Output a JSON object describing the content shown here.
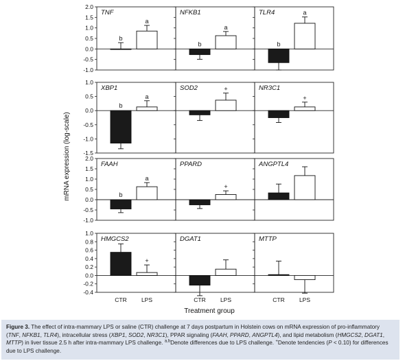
{
  "figure": {
    "ylabel": "mRNA expression (log-scale)",
    "xlabel": "Treatment group",
    "categories": [
      "CTR",
      "LPS"
    ]
  },
  "caption": {
    "label": "Figure 3.",
    "text": "The effect of intra-mammary LPS or saline (CTR) challenge at 7 days postpartum in Holstein cows on mRNA expression of pro-inflammatory (TNF, NFKB1, TLR4), intracellular stress (XBP1, SOD2, NR3C1), PPAR signaling (FAAH, PPARD, ANGPTL4), and lipid metabolism (HMGCS2, DGAT1, MTTP) in liver tissue 2.5 h after intra-mammary LPS challenge. a,bDenote differences due to LPS challenge. +Denote tendencies (P < 0.10) for differences due to LPS challenge."
  },
  "colors": {
    "ctr": "#1a1a1a",
    "lps": "#ffffff",
    "caption_bg": "#dde3ee"
  },
  "chart_data": [
    {
      "type": "bar",
      "title": "TNF",
      "ylim": [
        -1.0,
        2.0
      ],
      "yticks": [
        -1.0,
        -0.5,
        0.0,
        0.5,
        1.0,
        1.5,
        2.0
      ],
      "categories": [
        "CTR",
        "LPS"
      ],
      "values": [
        0.0,
        0.85
      ],
      "errors": [
        0.3,
        0.27
      ],
      "labels": [
        "b",
        "a"
      ]
    },
    {
      "type": "bar",
      "title": "NFKB1",
      "ylim": [
        -1.0,
        2.0
      ],
      "yticks": [
        -1.0,
        -0.5,
        0.0,
        0.5,
        1.0,
        1.5,
        2.0
      ],
      "categories": [
        "CTR",
        "LPS"
      ],
      "values": [
        -0.27,
        0.63
      ],
      "errors": [
        0.22,
        0.2
      ],
      "labels": [
        "b",
        "a"
      ]
    },
    {
      "type": "bar",
      "title": "TLR4",
      "ylim": [
        -1.0,
        2.0
      ],
      "yticks": [
        -1.0,
        -0.5,
        0.0,
        0.5,
        1.0,
        1.5,
        2.0
      ],
      "categories": [
        "CTR",
        "LPS"
      ],
      "values": [
        -0.65,
        1.22
      ],
      "errors": [
        0.35,
        0.3
      ],
      "labels": [
        "b",
        "a"
      ]
    },
    {
      "type": "bar",
      "title": "XBP1",
      "ylim": [
        -1.5,
        1.0
      ],
      "yticks": [
        -1.5,
        -1.0,
        -0.5,
        0.0,
        0.5,
        1.0
      ],
      "categories": [
        "CTR",
        "LPS"
      ],
      "values": [
        -1.15,
        0.13
      ],
      "errors": [
        0.2,
        0.22
      ],
      "labels": [
        "b",
        "a"
      ]
    },
    {
      "type": "bar",
      "title": "SOD2",
      "ylim": [
        -1.5,
        1.0
      ],
      "yticks": [
        -1.5,
        -1.0,
        -0.5,
        0.0,
        0.5,
        1.0
      ],
      "categories": [
        "CTR",
        "LPS"
      ],
      "values": [
        -0.15,
        0.37
      ],
      "errors": [
        0.2,
        0.25
      ],
      "labels": [
        "",
        "+"
      ]
    },
    {
      "type": "bar",
      "title": "NR3C1",
      "ylim": [
        -1.5,
        1.0
      ],
      "yticks": [
        -1.5,
        -1.0,
        -0.5,
        0.0,
        0.5,
        1.0
      ],
      "categories": [
        "CTR",
        "LPS"
      ],
      "values": [
        -0.25,
        0.13
      ],
      "errors": [
        0.17,
        0.17
      ],
      "labels": [
        "",
        "+"
      ]
    },
    {
      "type": "bar",
      "title": "FAAH",
      "ylim": [
        -1.0,
        2.0
      ],
      "yticks": [
        -1.0,
        -0.5,
        0.0,
        0.5,
        1.0,
        1.5,
        2.0
      ],
      "categories": [
        "CTR",
        "LPS"
      ],
      "values": [
        -0.45,
        0.63
      ],
      "errors": [
        0.18,
        0.2
      ],
      "labels": [
        "b",
        "a"
      ]
    },
    {
      "type": "bar",
      "title": "PPARD",
      "ylim": [
        -1.0,
        2.0
      ],
      "yticks": [
        -1.0,
        -0.5,
        0.0,
        0.5,
        1.0,
        1.5,
        2.0
      ],
      "categories": [
        "CTR",
        "LPS"
      ],
      "values": [
        -0.25,
        0.25
      ],
      "errors": [
        0.18,
        0.18
      ],
      "labels": [
        "",
        "+"
      ]
    },
    {
      "type": "bar",
      "title": "ANGPTL4",
      "ylim": [
        -1.0,
        2.0
      ],
      "yticks": [
        -1.0,
        -0.5,
        0.0,
        0.5,
        1.0,
        1.5,
        2.0
      ],
      "categories": [
        "CTR",
        "LPS"
      ],
      "values": [
        0.33,
        1.17
      ],
      "errors": [
        0.43,
        0.43
      ],
      "labels": [
        "",
        ""
      ]
    },
    {
      "type": "bar",
      "title": "HMGCS2",
      "ylim": [
        -0.4,
        1.0
      ],
      "yticks": [
        -0.4,
        -0.2,
        0.0,
        0.2,
        0.4,
        0.6,
        0.8,
        1.0
      ],
      "categories": [
        "CTR",
        "LPS"
      ],
      "values": [
        0.55,
        0.07
      ],
      "errors": [
        0.2,
        0.18
      ],
      "labels": [
        "",
        "+"
      ]
    },
    {
      "type": "bar",
      "title": "DGAT1",
      "ylim": [
        -0.4,
        1.0
      ],
      "yticks": [
        -0.4,
        -0.2,
        0.0,
        0.2,
        0.4,
        0.6,
        0.8,
        1.0
      ],
      "categories": [
        "CTR",
        "LPS"
      ],
      "values": [
        -0.23,
        0.15
      ],
      "errors": [
        0.25,
        0.22
      ],
      "labels": [
        "",
        ""
      ]
    },
    {
      "type": "bar",
      "title": "MTTP",
      "ylim": [
        -0.4,
        1.0
      ],
      "yticks": [
        -0.4,
        -0.2,
        0.0,
        0.2,
        0.4,
        0.6,
        0.8,
        1.0
      ],
      "categories": [
        "CTR",
        "LPS"
      ],
      "values": [
        0.02,
        -0.1
      ],
      "errors": [
        0.32,
        0.32
      ],
      "labels": [
        "",
        ""
      ]
    }
  ]
}
